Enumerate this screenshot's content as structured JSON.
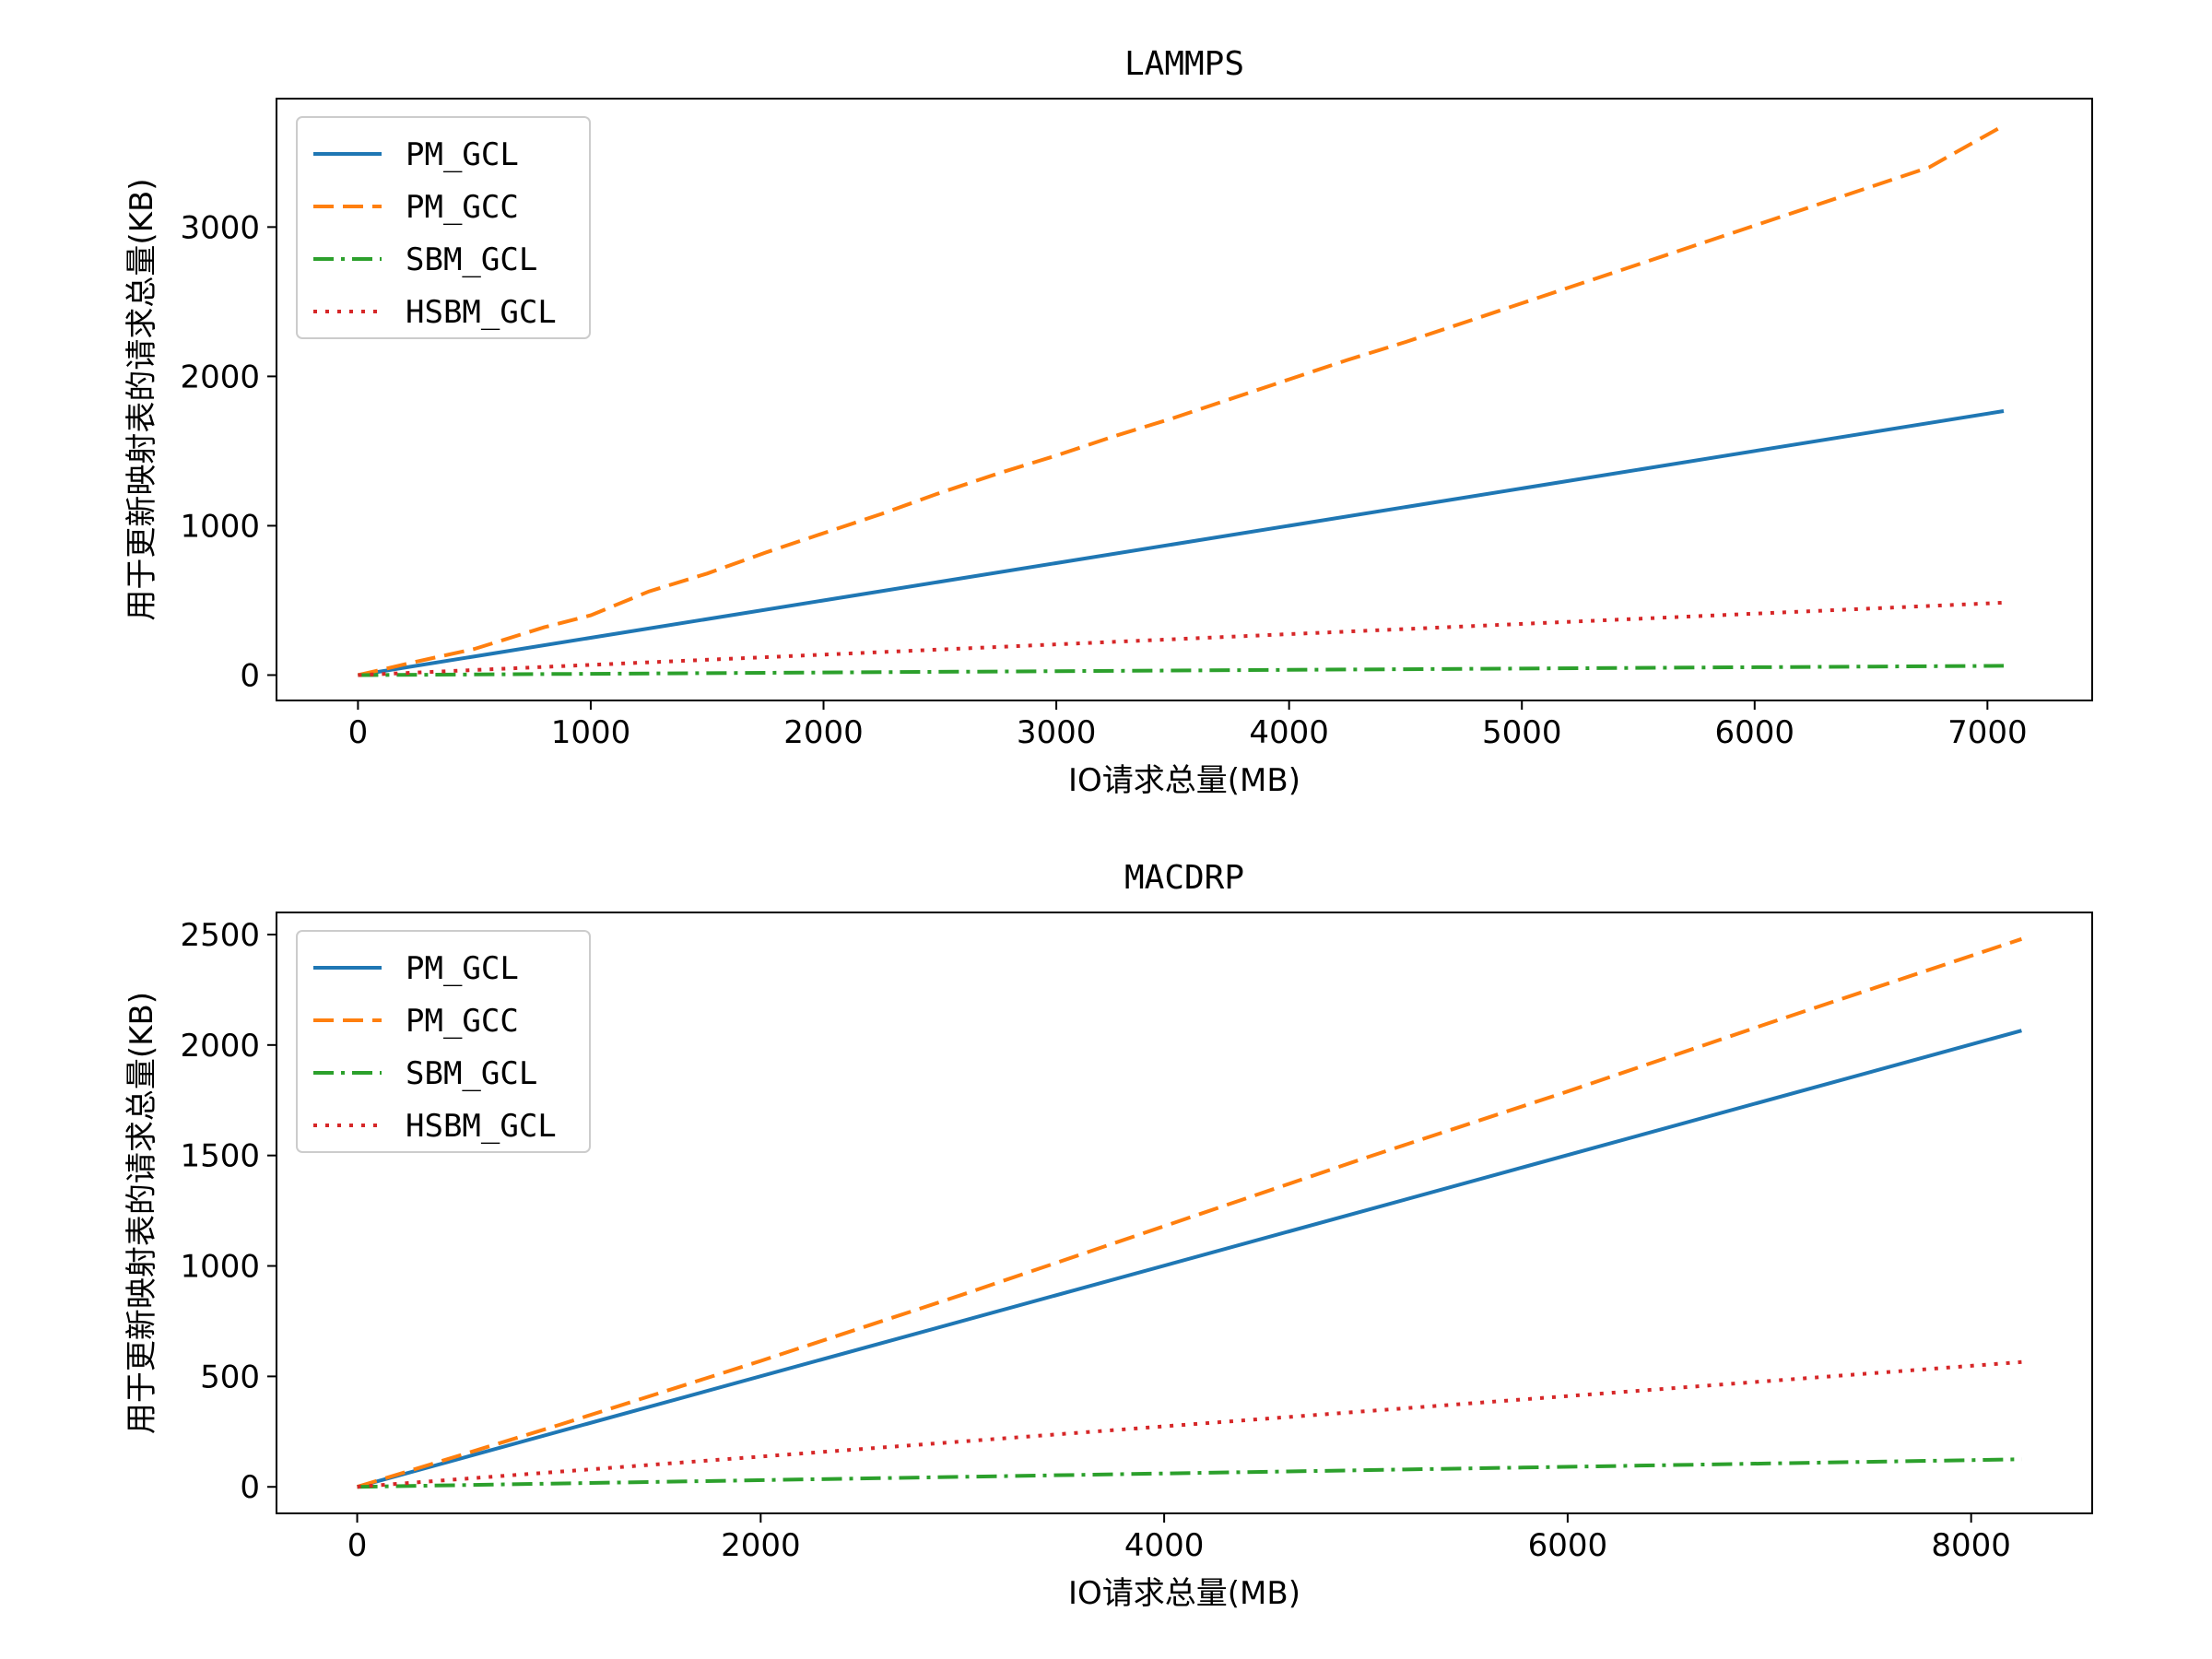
{
  "chart_data": [
    {
      "type": "line",
      "title": "LAMMPS",
      "xlabel": "IO请求总量(MB)",
      "ylabel": "用于更新映射表的请求总量(KB)",
      "xlim": [
        -350,
        7450
      ],
      "ylim": [
        -170,
        3860
      ],
      "xticks": [
        0,
        1000,
        2000,
        3000,
        4000,
        5000,
        6000,
        7000
      ],
      "yticks": [
        0,
        1000,
        2000,
        3000
      ],
      "grid": false,
      "legend": "top-left",
      "series": [
        {
          "name": "PM_GCL",
          "color": "#1f77b4",
          "style": "solid",
          "x": [
            0,
            7070
          ],
          "y": [
            0,
            1768
          ]
        },
        {
          "name": "PM_GCC",
          "color": "#ff7f0e",
          "style": "dashed",
          "x": [
            0,
            250,
            500,
            800,
            1000,
            1250,
            1500,
            1750,
            2000,
            2250,
            2500,
            2750,
            3000,
            3250,
            3500,
            3750,
            4000,
            4250,
            4500,
            4750,
            5000,
            5250,
            5500,
            5750,
            6000,
            6250,
            6500,
            6750,
            7070
          ],
          "y": [
            0,
            90,
            175,
            320,
            400,
            560,
            680,
            820,
            950,
            1080,
            1220,
            1350,
            1470,
            1600,
            1720,
            1850,
            1980,
            2110,
            2230,
            2360,
            2490,
            2620,
            2750,
            2880,
            3010,
            3140,
            3270,
            3400,
            3680
          ]
        },
        {
          "name": "SBM_GCL",
          "color": "#2ca02c",
          "style": "dashdot",
          "x": [
            0,
            7070
          ],
          "y": [
            0,
            62
          ]
        },
        {
          "name": "HSBM_GCL",
          "color": "#d62728",
          "style": "dotted",
          "x": [
            0,
            7070
          ],
          "y": [
            0,
            485
          ]
        }
      ]
    },
    {
      "type": "line",
      "title": "MACDRP",
      "xlabel": "IO请求总量(MB)",
      "ylabel": "用于更新映射表的请求总量(KB)",
      "xlim": [
        -400,
        8600
      ],
      "ylim": [
        -120,
        2600
      ],
      "xticks": [
        0,
        2000,
        4000,
        6000,
        8000
      ],
      "yticks": [
        0,
        500,
        1000,
        1500,
        2000,
        2500
      ],
      "grid": false,
      "legend": "top-left",
      "series": [
        {
          "name": "PM_GCL",
          "color": "#1f77b4",
          "style": "solid",
          "x": [
            0,
            8250
          ],
          "y": [
            0,
            2065
          ]
        },
        {
          "name": "PM_GCC",
          "color": "#ff7f0e",
          "style": "dashed",
          "x": [
            0,
            1000,
            2000,
            3000,
            4000,
            5000,
            6000,
            7000,
            8250
          ],
          "y": [
            0,
            280,
            570,
            870,
            1180,
            1490,
            1790,
            2100,
            2480
          ]
        },
        {
          "name": "SBM_GCL",
          "color": "#2ca02c",
          "style": "dashdot",
          "x": [
            0,
            8250
          ],
          "y": [
            0,
            125
          ]
        },
        {
          "name": "HSBM_GCL",
          "color": "#d62728",
          "style": "dotted",
          "x": [
            0,
            8250
          ],
          "y": [
            0,
            565
          ]
        }
      ]
    }
  ]
}
